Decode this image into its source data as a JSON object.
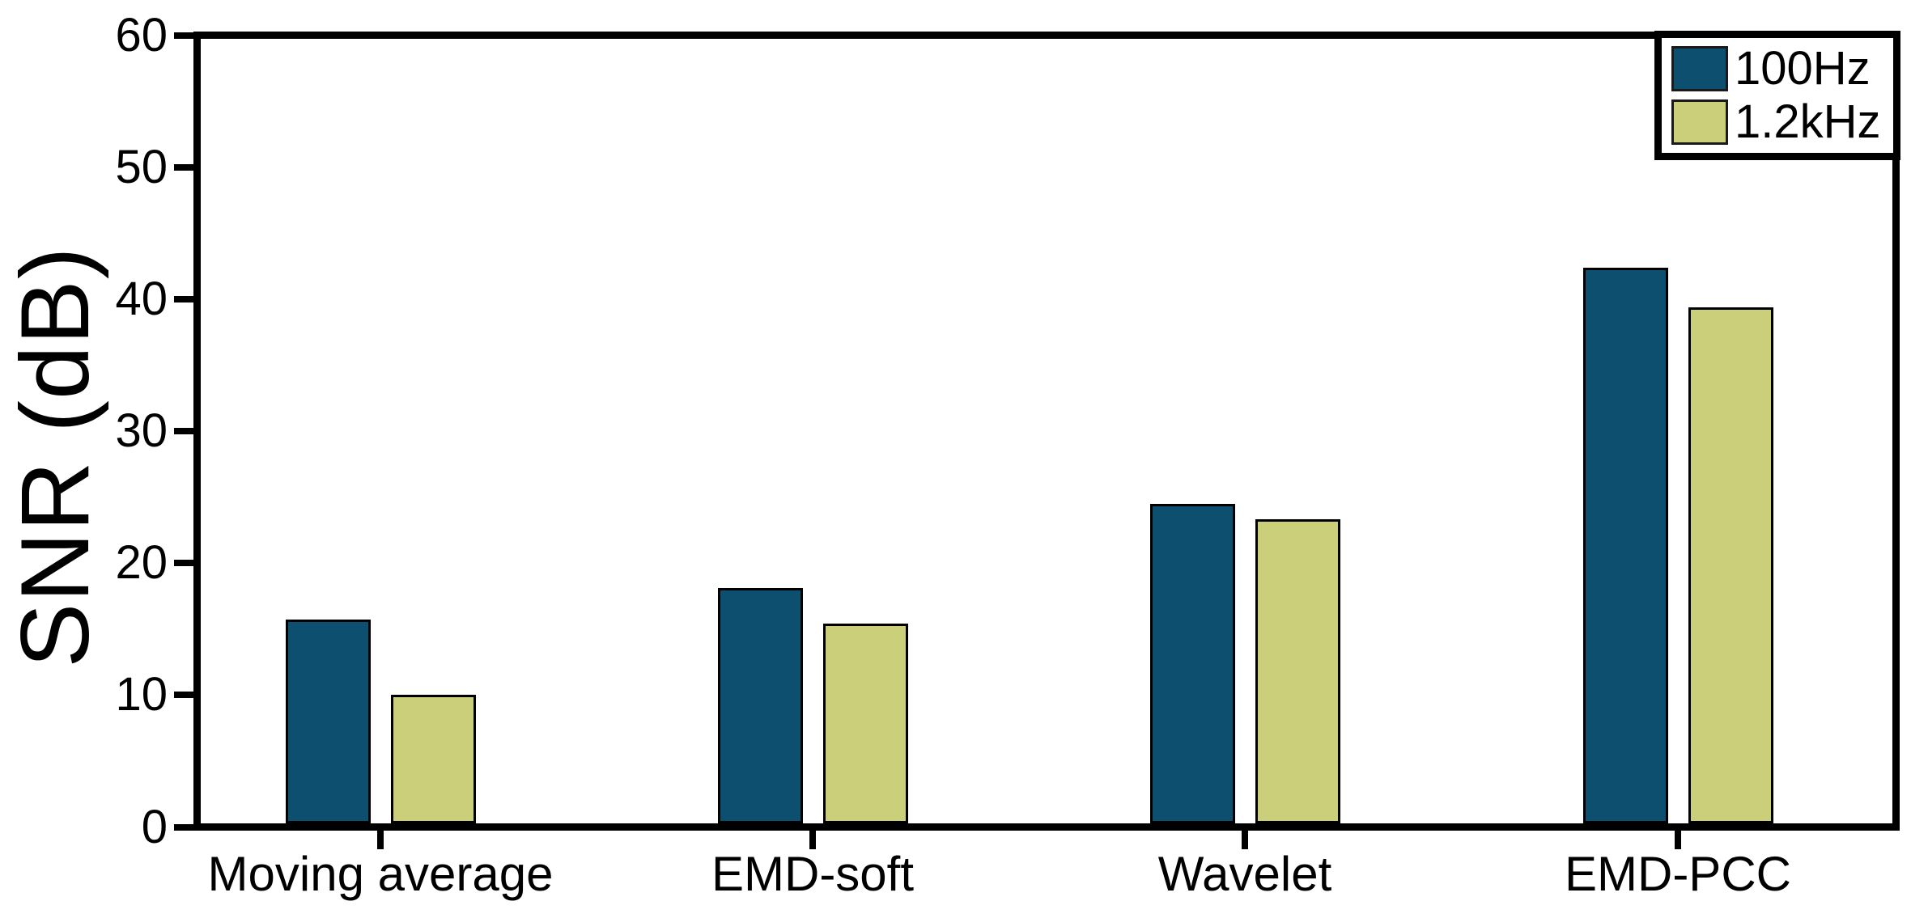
{
  "chart_data": {
    "type": "bar",
    "categories": [
      "Moving average",
      "EMD-soft",
      "Wavelet",
      "EMD-PCC"
    ],
    "series": [
      {
        "name": "100Hz",
        "color": "#0d4f6e",
        "values": [
          15.7,
          18.1,
          24.5,
          42.4
        ]
      },
      {
        "name": "1.2kHz",
        "color": "#cbcf7a",
        "values": [
          10.0,
          15.4,
          23.3,
          39.4
        ]
      }
    ],
    "xlabel": "",
    "ylabel": "SNR (dB)",
    "ylim": [
      0,
      60
    ],
    "yticks": [
      0,
      10,
      20,
      30,
      40,
      50,
      60
    ],
    "grid": false,
    "legend_position": "top-right",
    "background_color": "#ffffff",
    "axis_color": "#000000",
    "bar_edge_color": "#000000"
  }
}
